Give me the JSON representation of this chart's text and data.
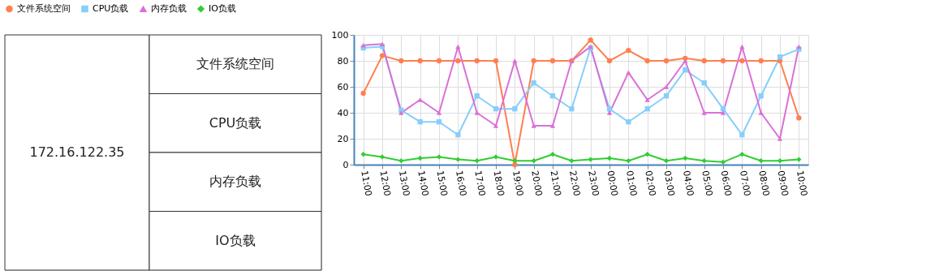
{
  "chart_data": [
    {
      "type": "other",
      "annotations": [
        "172.16.122.35",
        "文件系统空间",
        "CPU负载",
        "内存负载",
        "IO负载"
      ]
    },
    {
      "type": "line",
      "categories": [
        "11:00",
        "12:00",
        "13:00",
        "14:00",
        "15:00",
        "16:00",
        "17:00",
        "18:00",
        "19:00",
        "20:00",
        "21:00",
        "22:00",
        "23:00",
        "00:00",
        "01:00",
        "02:00",
        "03:00",
        "04:00",
        "05:00",
        "06:00",
        "07:00",
        "08:00",
        "09:00",
        "10:00"
      ],
      "series": [
        {
          "name": "文件系统空间",
          "color": "#ff7f50",
          "marker": "circle",
          "values": [
            55,
            84,
            80,
            80,
            80,
            80,
            80,
            80,
            0,
            80,
            80,
            80,
            96,
            80,
            88,
            80,
            80,
            82,
            80,
            80,
            80,
            80,
            80,
            36
          ]
        },
        {
          "name": "CPU负载",
          "color": "#87cefa",
          "marker": "square",
          "values": [
            90,
            91,
            42,
            33,
            33,
            23,
            53,
            43,
            43,
            63,
            53,
            43,
            90,
            43,
            33,
            43,
            53,
            73,
            63,
            43,
            23,
            53,
            83,
            89
          ]
        },
        {
          "name": "内存负载",
          "color": "#da70d6",
          "marker": "triangle",
          "values": [
            92,
            93,
            40,
            50,
            40,
            91,
            40,
            30,
            80,
            30,
            30,
            80,
            91,
            40,
            71,
            50,
            60,
            80,
            40,
            40,
            91,
            40,
            20,
            91
          ]
        },
        {
          "name": "IO负载",
          "color": "#32cd32",
          "marker": "diamond",
          "values": [
            8,
            6,
            3,
            5,
            6,
            4,
            3,
            6,
            3,
            3,
            8,
            3,
            4,
            5,
            3,
            8,
            3,
            5,
            3,
            2,
            8,
            3,
            3,
            4
          ]
        }
      ],
      "ylim": [
        0,
        100
      ],
      "yticks": [
        0,
        20,
        40,
        60,
        80,
        100
      ],
      "grid": true,
      "legend": "top",
      "line_style": "solid"
    }
  ]
}
